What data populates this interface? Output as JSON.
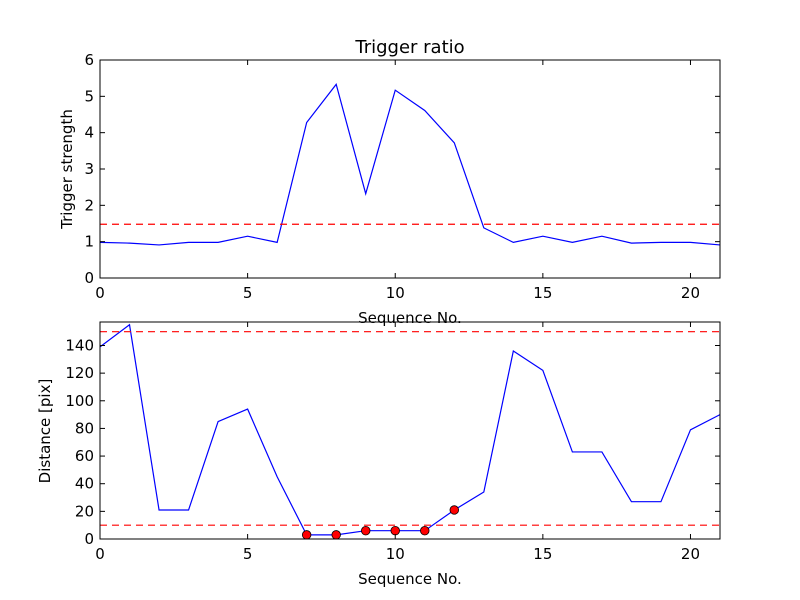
{
  "chart_data": [
    {
      "type": "line",
      "title": "Trigger ratio",
      "xlabel": "Sequence No.",
      "ylabel": "Trigger strength",
      "xlim": [
        0,
        21
      ],
      "ylim": [
        0,
        6
      ],
      "xticks": [
        0,
        5,
        10,
        15,
        20
      ],
      "yticks": [
        0,
        1,
        2,
        3,
        4,
        5,
        6
      ],
      "grid": false,
      "series": [
        {
          "color": "#0000ff",
          "x": [
            0,
            1,
            2,
            3,
            4,
            5,
            6,
            7,
            8,
            9,
            10,
            11,
            12,
            13,
            14,
            15,
            16,
            17,
            18,
            19,
            20,
            21
          ],
          "y": [
            0.98,
            0.96,
            0.91,
            0.98,
            0.98,
            1.15,
            0.98,
            4.28,
            5.33,
            2.32,
            5.17,
            4.61,
            3.72,
            1.38,
            0.98,
            1.15,
            0.98,
            1.15,
            0.96,
            0.98,
            0.98,
            0.91
          ]
        }
      ],
      "hlines": [
        {
          "y": 1.48,
          "color": "#ff0000",
          "style": "dashed"
        }
      ]
    },
    {
      "type": "line",
      "title": "",
      "xlabel": "Sequence No.",
      "ylabel": "Distance [pix]",
      "xlim": [
        0,
        21
      ],
      "ylim": [
        0,
        157
      ],
      "xticks": [
        0,
        5,
        10,
        15,
        20
      ],
      "yticks": [
        0,
        20,
        40,
        60,
        80,
        100,
        120,
        140
      ],
      "grid": false,
      "series": [
        {
          "color": "#0000ff",
          "x": [
            0,
            1,
            2,
            3,
            4,
            5,
            6,
            7,
            8,
            9,
            10,
            11,
            12,
            13,
            14,
            15,
            16,
            17,
            18,
            19,
            20,
            21
          ],
          "y": [
            139,
            155,
            21,
            21,
            85,
            94,
            45,
            3,
            3,
            6,
            6,
            6,
            21,
            34,
            136,
            122,
            63,
            63,
            27,
            27,
            79,
            90
          ]
        }
      ],
      "markers": {
        "color": "#ff0000",
        "x": [
          7,
          8,
          9,
          10,
          11,
          12
        ],
        "y": [
          3,
          3,
          6,
          6,
          6,
          21
        ]
      },
      "hlines": [
        {
          "y": 150,
          "color": "#ff0000",
          "style": "dashed"
        },
        {
          "y": 10,
          "color": "#ff0000",
          "style": "dashed"
        }
      ]
    }
  ]
}
